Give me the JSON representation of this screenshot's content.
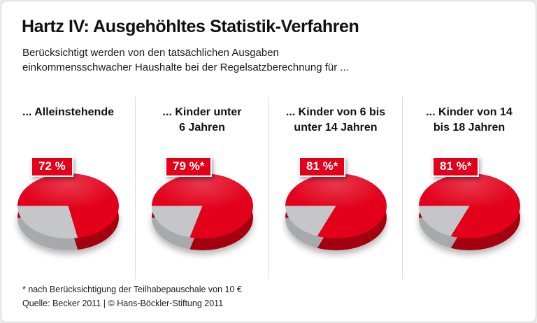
{
  "frame": {
    "title": "Hartz IV: Ausgehöhltes Statistik-Verfahren",
    "subtitle_line1": "Berücksichtigt werden von den tatsächlichen Ausgaben",
    "subtitle_line2": "einkommensschwacher Haushalte bei der Regelsatzberechnung für ...",
    "footnote": "* nach Berücksichtigung der Teilhabepauschale von 10 €",
    "source": "Quelle: Becker 2011 | © Hans-Böckler-Stiftung 2011"
  },
  "colors": {
    "red": "#e2001a",
    "red_dark": "#a40010",
    "gray": "#c5c6c9",
    "gray_dark": "#a8a9ad",
    "badge_background": "#e2001a",
    "text": "#1b1b1b"
  },
  "columns": [
    {
      "label_line1": "... Alleinstehende",
      "label_line2": "",
      "badge": "72 %",
      "value_pct": 72
    },
    {
      "label_line1": "... Kinder unter",
      "label_line2": "6 Jahren",
      "badge": "79 %*",
      "value_pct": 79
    },
    {
      "label_line1": "... Kinder von 6 bis",
      "label_line2": "unter 14 Jahren",
      "badge": "81 %*",
      "value_pct": 81
    },
    {
      "label_line1": "... Kinder von 14",
      "label_line2": "bis 18 Jahren",
      "badge": "81 %*",
      "value_pct": 81
    }
  ],
  "chart_data": [
    {
      "type": "pie",
      "category": "... Alleinstehende",
      "values": [
        72,
        28
      ],
      "data_label": "72 %",
      "colors": [
        "#e2001a",
        "#c5c6c9"
      ],
      "style": "3d-pie, label badge top-left, gray remainder slice at lower-left"
    },
    {
      "type": "pie",
      "category": "... Kinder unter 6 Jahren",
      "values": [
        79,
        21
      ],
      "data_label": "79 %*",
      "colors": [
        "#e2001a",
        "#c5c6c9"
      ],
      "style": "3d-pie, label badge top-left, gray remainder slice at lower-left"
    },
    {
      "type": "pie",
      "category": "... Kinder von 6 bis unter 14 Jahren",
      "values": [
        81,
        19
      ],
      "data_label": "81 %*",
      "colors": [
        "#e2001a",
        "#c5c6c9"
      ],
      "style": "3d-pie, label badge top-left, gray remainder slice at lower-left"
    },
    {
      "type": "pie",
      "category": "... Kinder von 14 bis 18 Jahren",
      "values": [
        81,
        19
      ],
      "data_label": "81 %*",
      "colors": [
        "#e2001a",
        "#c5c6c9"
      ],
      "style": "3d-pie, label badge top-left, gray remainder slice at lower-left"
    }
  ]
}
